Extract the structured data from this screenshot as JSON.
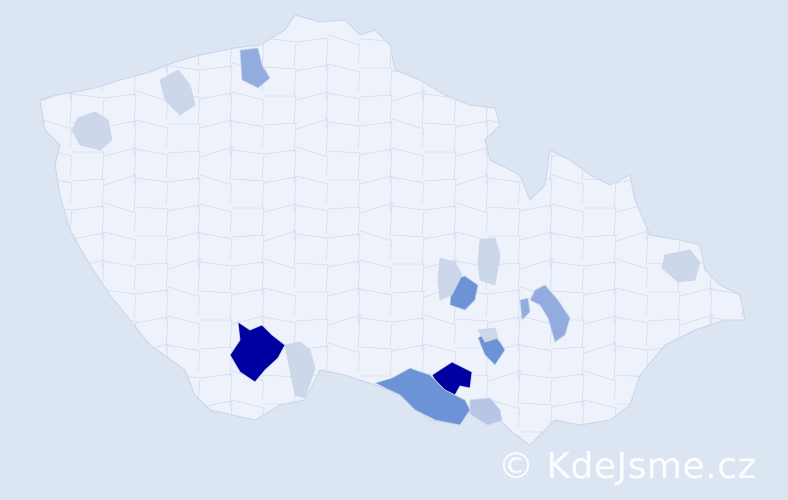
{
  "map": {
    "country_fill": "#eef2fa",
    "border_color": "#c9d4ea",
    "background": "#dce5f2",
    "highlight_levels": {
      "highest": "#0000a0",
      "high": "#6c93d6",
      "medium": "#93acdf",
      "low": "#b7c6e6",
      "lowest": "#cdd7ea"
    }
  },
  "watermark": {
    "text": "© KdeJsme.cz"
  }
}
